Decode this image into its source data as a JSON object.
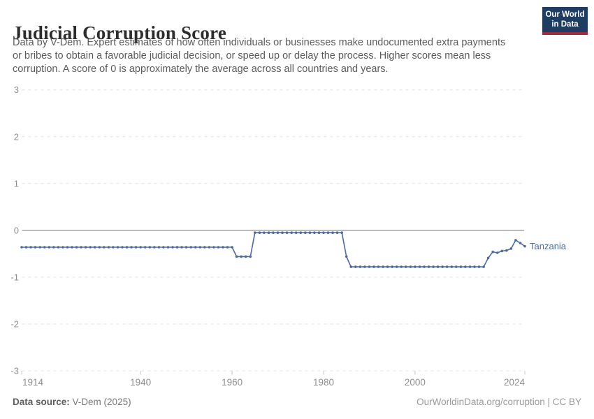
{
  "header": {
    "title": "Judicial Corruption Score",
    "subtitle_lines": [
      "Data by V-Dem. Expert estimates of how often individuals or businesses make undocumented extra payments",
      "or bribes to obtain a favorable judicial decision, or speed up or delay the process. Higher scores mean less",
      "corruption. A score of 0 is approximately the average across all countries and years."
    ],
    "logo": {
      "line1": "Our World",
      "line2": "in Data",
      "bg_color": "#1d3d63",
      "stripe_color": "#a02a3d"
    }
  },
  "chart_data": {
    "type": "line",
    "title": "Judicial Corruption Score",
    "xlabel": "",
    "ylabel": "",
    "xlim": [
      1914,
      2024
    ],
    "ylim": [
      -3,
      3
    ],
    "x_ticks": [
      1914,
      1940,
      1960,
      1980,
      2000,
      2024
    ],
    "y_ticks": [
      3,
      2,
      1,
      0,
      -1,
      -2,
      -3
    ],
    "grid": "horizontal dashed gridlines; solid line at 0",
    "legend_position": "label at end of line",
    "colors": {
      "gridline": "#e0e0e0",
      "zero_line": "#a2a2a2",
      "tick_mark": "#c4c4c4",
      "axis_label": "#8e8e8e"
    },
    "series": [
      {
        "name": "Tanzania",
        "color": "#4c6aa0",
        "points": [
          [
            1914,
            -0.36
          ],
          [
            1915,
            -0.36
          ],
          [
            1916,
            -0.36
          ],
          [
            1917,
            -0.36
          ],
          [
            1918,
            -0.36
          ],
          [
            1919,
            -0.36
          ],
          [
            1920,
            -0.36
          ],
          [
            1921,
            -0.36
          ],
          [
            1922,
            -0.36
          ],
          [
            1923,
            -0.36
          ],
          [
            1924,
            -0.36
          ],
          [
            1925,
            -0.36
          ],
          [
            1926,
            -0.36
          ],
          [
            1927,
            -0.36
          ],
          [
            1928,
            -0.36
          ],
          [
            1929,
            -0.36
          ],
          [
            1930,
            -0.36
          ],
          [
            1931,
            -0.36
          ],
          [
            1932,
            -0.36
          ],
          [
            1933,
            -0.36
          ],
          [
            1934,
            -0.36
          ],
          [
            1935,
            -0.36
          ],
          [
            1936,
            -0.36
          ],
          [
            1937,
            -0.36
          ],
          [
            1938,
            -0.36
          ],
          [
            1939,
            -0.36
          ],
          [
            1940,
            -0.36
          ],
          [
            1941,
            -0.36
          ],
          [
            1942,
            -0.36
          ],
          [
            1943,
            -0.36
          ],
          [
            1944,
            -0.36
          ],
          [
            1945,
            -0.36
          ],
          [
            1946,
            -0.36
          ],
          [
            1947,
            -0.36
          ],
          [
            1948,
            -0.36
          ],
          [
            1949,
            -0.36
          ],
          [
            1950,
            -0.36
          ],
          [
            1951,
            -0.36
          ],
          [
            1952,
            -0.36
          ],
          [
            1953,
            -0.36
          ],
          [
            1954,
            -0.36
          ],
          [
            1955,
            -0.36
          ],
          [
            1956,
            -0.36
          ],
          [
            1957,
            -0.36
          ],
          [
            1958,
            -0.36
          ],
          [
            1959,
            -0.36
          ],
          [
            1960,
            -0.36
          ],
          [
            1961,
            -0.56
          ],
          [
            1962,
            -0.56
          ],
          [
            1963,
            -0.56
          ],
          [
            1964,
            -0.56
          ],
          [
            1965,
            -0.05
          ],
          [
            1966,
            -0.05
          ],
          [
            1967,
            -0.05
          ],
          [
            1968,
            -0.05
          ],
          [
            1969,
            -0.05
          ],
          [
            1970,
            -0.05
          ],
          [
            1971,
            -0.05
          ],
          [
            1972,
            -0.05
          ],
          [
            1973,
            -0.05
          ],
          [
            1974,
            -0.05
          ],
          [
            1975,
            -0.05
          ],
          [
            1976,
            -0.05
          ],
          [
            1977,
            -0.05
          ],
          [
            1978,
            -0.05
          ],
          [
            1979,
            -0.05
          ],
          [
            1980,
            -0.05
          ],
          [
            1981,
            -0.05
          ],
          [
            1982,
            -0.05
          ],
          [
            1983,
            -0.05
          ],
          [
            1984,
            -0.05
          ],
          [
            1985,
            -0.56
          ],
          [
            1986,
            -0.78
          ],
          [
            1987,
            -0.78
          ],
          [
            1988,
            -0.78
          ],
          [
            1989,
            -0.78
          ],
          [
            1990,
            -0.78
          ],
          [
            1991,
            -0.78
          ],
          [
            1992,
            -0.78
          ],
          [
            1993,
            -0.78
          ],
          [
            1994,
            -0.78
          ],
          [
            1995,
            -0.78
          ],
          [
            1996,
            -0.78
          ],
          [
            1997,
            -0.78
          ],
          [
            1998,
            -0.78
          ],
          [
            1999,
            -0.78
          ],
          [
            2000,
            -0.78
          ],
          [
            2001,
            -0.78
          ],
          [
            2002,
            -0.78
          ],
          [
            2003,
            -0.78
          ],
          [
            2004,
            -0.78
          ],
          [
            2005,
            -0.78
          ],
          [
            2006,
            -0.78
          ],
          [
            2007,
            -0.78
          ],
          [
            2008,
            -0.78
          ],
          [
            2009,
            -0.78
          ],
          [
            2010,
            -0.78
          ],
          [
            2011,
            -0.78
          ],
          [
            2012,
            -0.78
          ],
          [
            2013,
            -0.78
          ],
          [
            2014,
            -0.78
          ],
          [
            2015,
            -0.78
          ],
          [
            2016,
            -0.59
          ],
          [
            2017,
            -0.46
          ],
          [
            2018,
            -0.48
          ],
          [
            2019,
            -0.44
          ],
          [
            2020,
            -0.43
          ],
          [
            2021,
            -0.39
          ],
          [
            2022,
            -0.21
          ],
          [
            2023,
            -0.27
          ],
          [
            2024,
            -0.34
          ]
        ]
      }
    ]
  },
  "footer": {
    "source_label": "Data source:",
    "source_value": "V-Dem (2025)",
    "credit": "OurWorldinData.org/corruption | CC BY"
  }
}
